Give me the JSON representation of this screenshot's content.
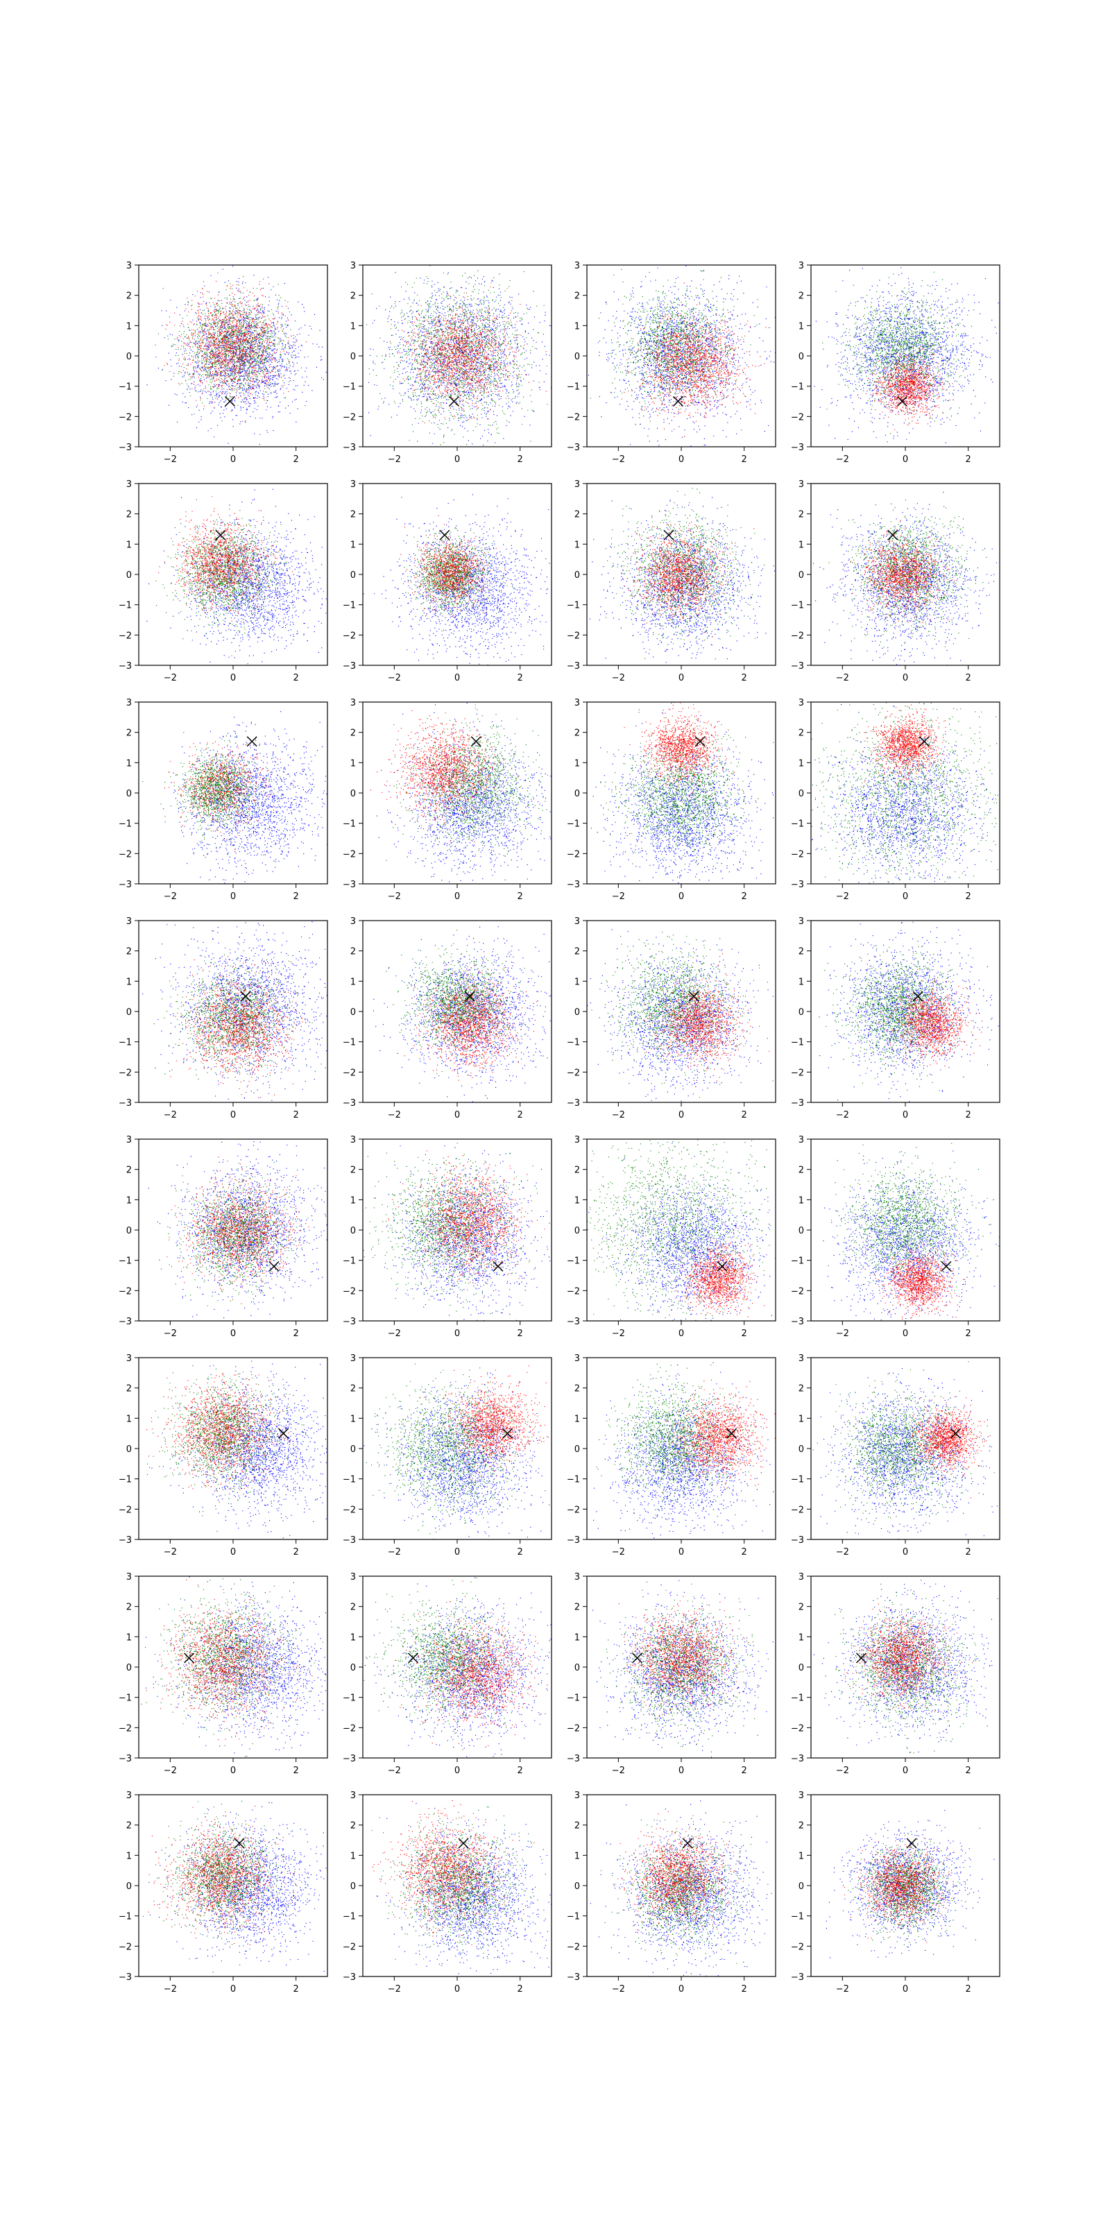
{
  "chart_data": {
    "type": "scatter",
    "layout": {
      "rows": 8,
      "cols": 4
    },
    "xlim": [
      -3,
      3
    ],
    "ylim": [
      -3,
      3
    ],
    "xticks": [
      -2,
      0,
      2
    ],
    "yticks": [
      -3,
      -2,
      -1,
      0,
      1,
      2,
      3
    ],
    "xtick_labels": [
      "−2",
      "0",
      "2"
    ],
    "ytick_labels": [
      "−3",
      "−2",
      "−1",
      "0",
      "1",
      "2",
      "3"
    ],
    "grid": false,
    "legend": "none",
    "colors": {
      "series_a": "#0000ff",
      "series_b": "#008000",
      "series_c": "#ff0000",
      "marker": "#000000"
    },
    "panels": [
      {
        "marker": [
          -0.1,
          -1.5
        ],
        "blue": {
          "c": [
            0.3,
            0
          ],
          "s": 0.95,
          "n": 1800
        },
        "green": {
          "c": [
            0,
            0.3
          ],
          "s": 0.75,
          "n": 1400
        },
        "red": {
          "c": [
            0,
            0.4
          ],
          "s": 0.75,
          "n": 1400
        }
      },
      {
        "marker": [
          -0.1,
          -1.5
        ],
        "blue": {
          "c": [
            0.1,
            0
          ],
          "s": 1.1,
          "n": 1800
        },
        "green": {
          "c": [
            0,
            0.1
          ],
          "s": 1.05,
          "n": 1600
        },
        "red": {
          "c": [
            0,
            0
          ],
          "s": 0.75,
          "n": 1400
        }
      },
      {
        "marker": [
          -0.1,
          -1.5
        ],
        "blue": {
          "c": [
            0,
            0
          ],
          "s": 1.05,
          "n": 1800
        },
        "green": {
          "c": [
            -0.2,
            0.3
          ],
          "s": 0.8,
          "n": 1400
        },
        "red": {
          "c": [
            0.3,
            -0.3
          ],
          "s": 0.75,
          "n": 1400
        }
      },
      {
        "marker": [
          -0.1,
          -1.5
        ],
        "blue": {
          "c": [
            0,
            0
          ],
          "s": 1.05,
          "n": 1800
        },
        "green": {
          "c": [
            -0.1,
            0.2
          ],
          "s": 0.8,
          "n": 1400
        },
        "red": {
          "c": [
            0.1,
            -1.0
          ],
          "s": 0.45,
          "n": 1100
        }
      },
      {
        "marker": [
          -0.4,
          1.3
        ],
        "blue": {
          "c": [
            0.6,
            -0.4
          ],
          "s": 0.95,
          "n": 1700
        },
        "green": {
          "c": [
            -0.3,
            0.1
          ],
          "s": 0.7,
          "n": 1400
        },
        "red": {
          "c": [
            -0.4,
            0.4
          ],
          "s": 0.65,
          "n": 1200
        }
      },
      {
        "marker": [
          -0.4,
          1.3
        ],
        "blue": {
          "c": [
            0.4,
            -0.5
          ],
          "s": 1.0,
          "n": 1700
        },
        "green": {
          "c": [
            -0.2,
            0
          ],
          "s": 0.55,
          "n": 1300
        },
        "red": {
          "c": [
            -0.2,
            0.1
          ],
          "s": 0.5,
          "n": 1000
        }
      },
      {
        "marker": [
          -0.4,
          1.3
        ],
        "blue": {
          "c": [
            0.1,
            -0.4
          ],
          "s": 1.0,
          "n": 1700
        },
        "green": {
          "c": [
            0,
            0.1
          ],
          "s": 0.85,
          "n": 1400
        },
        "red": {
          "c": [
            -0.1,
            0
          ],
          "s": 0.6,
          "n": 1200
        }
      },
      {
        "marker": [
          -0.4,
          1.3
        ],
        "blue": {
          "c": [
            0.1,
            -0.3
          ],
          "s": 1.0,
          "n": 1700
        },
        "green": {
          "c": [
            0.1,
            0.1
          ],
          "s": 0.8,
          "n": 1400
        },
        "red": {
          "c": [
            -0.1,
            0
          ],
          "s": 0.55,
          "n": 1200
        }
      },
      {
        "marker": [
          0.6,
          1.7
        ],
        "blue": {
          "c": [
            0.5,
            -0.3
          ],
          "s": 1.0,
          "n": 1700
        },
        "green": {
          "c": [
            -0.5,
            0.1
          ],
          "s": 0.55,
          "n": 1300
        },
        "red": {
          "c": [
            -0.4,
            0.2
          ],
          "s": 0.6,
          "n": 700
        }
      },
      {
        "marker": [
          0.6,
          1.7
        ],
        "blue": {
          "c": [
            0.5,
            -0.4
          ],
          "s": 1.0,
          "n": 1700
        },
        "green": {
          "c": [
            0.5,
            0.3
          ],
          "s": 0.85,
          "n": 1400
        },
        "red": {
          "c": [
            -0.4,
            0.8
          ],
          "s": 0.7,
          "n": 1300
        }
      },
      {
        "marker": [
          0.6,
          1.7
        ],
        "blue": {
          "c": [
            0.1,
            -0.6
          ],
          "s": 1.0,
          "n": 1700
        },
        "green": {
          "c": [
            0,
            -0.1
          ],
          "s": 0.85,
          "n": 1400
        },
        "red": {
          "c": [
            0,
            1.5
          ],
          "s": 0.5,
          "n": 1200
        }
      },
      {
        "marker": [
          0.6,
          1.7
        ],
        "blue": {
          "c": [
            0,
            -0.6
          ],
          "s": 1.1,
          "n": 1700
        },
        "green": {
          "c": [
            0,
            0
          ],
          "s": 1.4,
          "n": 1500
        },
        "red": {
          "c": [
            0,
            1.6
          ],
          "s": 0.45,
          "n": 1200
        }
      },
      {
        "marker": [
          0.4,
          0.5
        ],
        "blue": {
          "c": [
            0.5,
            0.2
          ],
          "s": 1.1,
          "n": 1700
        },
        "green": {
          "c": [
            0,
            -0.2
          ],
          "s": 0.75,
          "n": 1300
        },
        "red": {
          "c": [
            0.2,
            -0.5
          ],
          "s": 0.75,
          "n": 1300
        }
      },
      {
        "marker": [
          0.4,
          0.5
        ],
        "blue": {
          "c": [
            0.5,
            0
          ],
          "s": 1.0,
          "n": 1700
        },
        "green": {
          "c": [
            0,
            0.3
          ],
          "s": 0.7,
          "n": 1400
        },
        "red": {
          "c": [
            0.4,
            -0.4
          ],
          "s": 0.65,
          "n": 1300
        }
      },
      {
        "marker": [
          0.4,
          0.5
        ],
        "blue": {
          "c": [
            0,
            -0.3
          ],
          "s": 1.0,
          "n": 1700
        },
        "green": {
          "c": [
            -0.2,
            0.2
          ],
          "s": 0.85,
          "n": 1400
        },
        "red": {
          "c": [
            0.6,
            -0.4
          ],
          "s": 0.6,
          "n": 1200
        }
      },
      {
        "marker": [
          0.4,
          0.5
        ],
        "blue": {
          "c": [
            0,
            0
          ],
          "s": 1.0,
          "n": 1700
        },
        "green": {
          "c": [
            -0.2,
            0.1
          ],
          "s": 0.8,
          "n": 1400
        },
        "red": {
          "c": [
            0.8,
            -0.4
          ],
          "s": 0.5,
          "n": 1200
        }
      },
      {
        "marker": [
          1.3,
          -1.2
        ],
        "blue": {
          "c": [
            0.5,
            0
          ],
          "s": 1.0,
          "n": 1700
        },
        "green": {
          "c": [
            0.1,
            -0.1
          ],
          "s": 0.75,
          "n": 1400
        },
        "red": {
          "c": [
            0.2,
            0
          ],
          "s": 0.75,
          "n": 1300
        }
      },
      {
        "marker": [
          1.3,
          -1.2
        ],
        "blue": {
          "c": [
            0.3,
            -0.3
          ],
          "s": 1.0,
          "n": 1700
        },
        "green": {
          "c": [
            -0.3,
            0.2
          ],
          "s": 0.95,
          "n": 1500
        },
        "red": {
          "c": [
            0.4,
            0.3
          ],
          "s": 0.75,
          "n": 1300
        }
      },
      {
        "marker": [
          1.3,
          -1.2
        ],
        "blue": {
          "c": [
            0.3,
            -0.6
          ],
          "s": 1.0,
          "n": 1700
        },
        "green": {
          "c": [
            -0.3,
            0.3
          ],
          "s": 1.3,
          "n": 1500
        },
        "red": {
          "c": [
            1.2,
            -1.6
          ],
          "s": 0.45,
          "n": 1200
        }
      },
      {
        "marker": [
          1.3,
          -1.2
        ],
        "blue": {
          "c": [
            0,
            -0.5
          ],
          "s": 1.0,
          "n": 1700
        },
        "green": {
          "c": [
            0,
            0.2
          ],
          "s": 0.85,
          "n": 1400
        },
        "red": {
          "c": [
            0.4,
            -1.7
          ],
          "s": 0.45,
          "n": 1200
        }
      },
      {
        "marker": [
          1.6,
          0.5
        ],
        "blue": {
          "c": [
            0.8,
            0
          ],
          "s": 1.0,
          "n": 1700
        },
        "green": {
          "c": [
            -0.3,
            0.5
          ],
          "s": 0.75,
          "n": 1400
        },
        "red": {
          "c": [
            -0.4,
            0.6
          ],
          "s": 0.75,
          "n": 1300
        }
      },
      {
        "marker": [
          1.6,
          0.5
        ],
        "blue": {
          "c": [
            0.2,
            -0.4
          ],
          "s": 1.0,
          "n": 1700
        },
        "green": {
          "c": [
            -0.3,
            0
          ],
          "s": 0.95,
          "n": 1500
        },
        "red": {
          "c": [
            1.1,
            0.8
          ],
          "s": 0.6,
          "n": 1300
        }
      },
      {
        "marker": [
          1.6,
          0.5
        ],
        "blue": {
          "c": [
            0,
            -0.5
          ],
          "s": 1.0,
          "n": 1700
        },
        "green": {
          "c": [
            -0.2,
            0.3
          ],
          "s": 0.85,
          "n": 1400
        },
        "red": {
          "c": [
            1.2,
            0.4
          ],
          "s": 0.6,
          "n": 1300
        }
      },
      {
        "marker": [
          1.6,
          0.5
        ],
        "blue": {
          "c": [
            0,
            -0.2
          ],
          "s": 1.0,
          "n": 1700
        },
        "green": {
          "c": [
            -0.2,
            0
          ],
          "s": 0.85,
          "n": 1400
        },
        "red": {
          "c": [
            1.3,
            0.3
          ],
          "s": 0.45,
          "n": 1200
        }
      },
      {
        "marker": [
          -1.4,
          0.3
        ],
        "blue": {
          "c": [
            0.7,
            0
          ],
          "s": 1.0,
          "n": 1700
        },
        "green": {
          "c": [
            -0.2,
            0.3
          ],
          "s": 0.85,
          "n": 1400
        },
        "red": {
          "c": [
            -0.3,
            0.2
          ],
          "s": 0.8,
          "n": 1300
        }
      },
      {
        "marker": [
          -1.4,
          0.3
        ],
        "blue": {
          "c": [
            0.5,
            -0.2
          ],
          "s": 1.0,
          "n": 1700
        },
        "green": {
          "c": [
            -0.3,
            0.2
          ],
          "s": 0.85,
          "n": 1400
        },
        "red": {
          "c": [
            0.6,
            -0.2
          ],
          "s": 0.75,
          "n": 1300
        }
      },
      {
        "marker": [
          -1.4,
          0.3
        ],
        "blue": {
          "c": [
            0,
            -0.2
          ],
          "s": 1.0,
          "n": 1700
        },
        "green": {
          "c": [
            0,
            0
          ],
          "s": 0.85,
          "n": 1400
        },
        "red": {
          "c": [
            0,
            0.3
          ],
          "s": 0.7,
          "n": 1300
        }
      },
      {
        "marker": [
          -1.4,
          0.3
        ],
        "blue": {
          "c": [
            0.2,
            0
          ],
          "s": 1.0,
          "n": 1700
        },
        "green": {
          "c": [
            0,
            0
          ],
          "s": 0.85,
          "n": 1400
        },
        "red": {
          "c": [
            -0.1,
            0.3
          ],
          "s": 0.6,
          "n": 1300
        }
      },
      {
        "marker": [
          0.2,
          1.4
        ],
        "blue": {
          "c": [
            0.5,
            -0.1
          ],
          "s": 1.0,
          "n": 1700
        },
        "green": {
          "c": [
            -0.3,
            0.3
          ],
          "s": 0.75,
          "n": 1400
        },
        "red": {
          "c": [
            -0.4,
            0.3
          ],
          "s": 0.75,
          "n": 1300
        }
      },
      {
        "marker": [
          0.2,
          1.4
        ],
        "blue": {
          "c": [
            0.5,
            -0.4
          ],
          "s": 1.0,
          "n": 1700
        },
        "green": {
          "c": [
            0,
            0
          ],
          "s": 0.85,
          "n": 1400
        },
        "red": {
          "c": [
            -0.3,
            0.5
          ],
          "s": 0.75,
          "n": 1300
        }
      },
      {
        "marker": [
          0.2,
          1.4
        ],
        "blue": {
          "c": [
            0.3,
            -0.3
          ],
          "s": 1.0,
          "n": 1700
        },
        "green": {
          "c": [
            0,
            -0.2
          ],
          "s": 0.75,
          "n": 1400
        },
        "red": {
          "c": [
            -0.1,
            0.3
          ],
          "s": 0.65,
          "n": 1300
        }
      },
      {
        "marker": [
          0.2,
          1.4
        ],
        "blue": {
          "c": [
            0,
            0
          ],
          "s": 0.85,
          "n": 1600
        },
        "green": {
          "c": [
            0,
            -0.1
          ],
          "s": 0.6,
          "n": 1300
        },
        "red": {
          "c": [
            -0.1,
            0
          ],
          "s": 0.55,
          "n": 1200
        }
      }
    ]
  }
}
